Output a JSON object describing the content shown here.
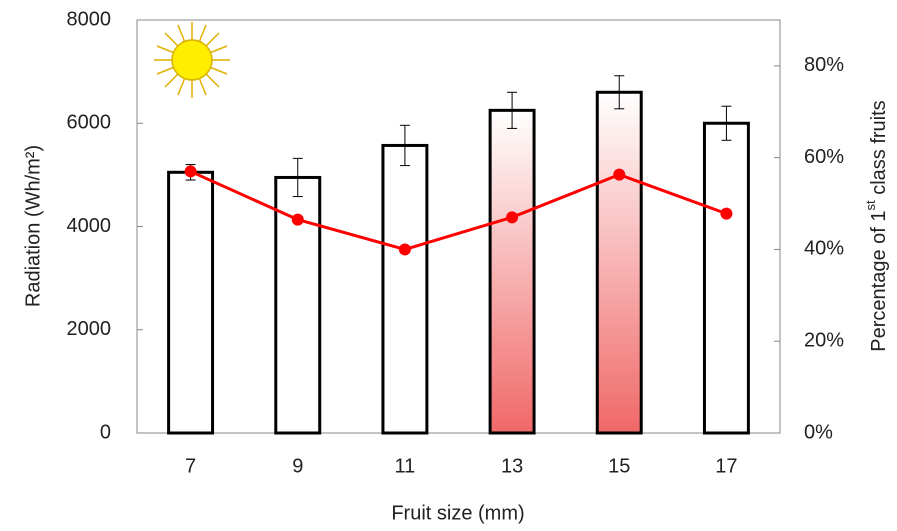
{
  "chart_data": {
    "type": "bar",
    "xlabel": "Fruit size (mm)",
    "ylabel": "Radiation (Wh/m²)",
    "y2label": [
      "Percentage of 1",
      "st",
      " class fruits"
    ],
    "categories": [
      "7",
      "9",
      "11",
      "13",
      "15",
      "17"
    ],
    "series": [
      {
        "type": "bar",
        "values": [
          5050,
          4950,
          5570,
          6250,
          6600,
          6000
        ],
        "errors": [
          150,
          370,
          390,
          350,
          320,
          330
        ],
        "colors": [
          "#ffffff",
          "#ffffff",
          "#ffffff",
          "#f06868",
          "#f06868",
          "#ffffff"
        ]
      },
      {
        "type": "line",
        "axis": "y2",
        "color": "#ff0000",
        "values": [
          57,
          46.5,
          40,
          47,
          56.3,
          47.8
        ]
      }
    ],
    "ylim": [
      0,
      8000
    ],
    "yticks": [
      0,
      2000,
      4000,
      6000,
      8000
    ],
    "y2lim": [
      0,
      90
    ],
    "y2ticks": [
      {
        "value": 0,
        "label": "0%"
      },
      {
        "value": 20,
        "label": "20%"
      },
      {
        "value": 40,
        "label": "40%"
      },
      {
        "value": 60,
        "label": "60%"
      },
      {
        "value": 80,
        "label": "80%"
      }
    ]
  }
}
